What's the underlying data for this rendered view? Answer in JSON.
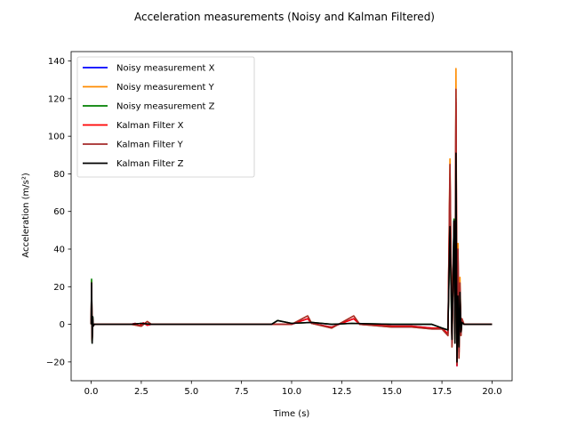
{
  "chart_data": {
    "type": "line",
    "title": "Acceleration measurements (Noisy and Kalman Filtered)",
    "xlabel": "Time (s)",
    "ylabel": "Acceleration (m/s²)",
    "xlim": [
      -1.0,
      21.0
    ],
    "ylim": [
      -30,
      145
    ],
    "xticks": [
      0.0,
      2.5,
      5.0,
      7.5,
      10.0,
      12.5,
      15.0,
      17.5,
      20.0
    ],
    "xtick_labels": [
      "0.0",
      "2.5",
      "5.0",
      "7.5",
      "10.0",
      "12.5",
      "15.0",
      "17.5",
      "20.0"
    ],
    "yticks": [
      -20,
      0,
      20,
      40,
      60,
      80,
      100,
      120,
      140
    ],
    "ytick_labels": [
      "−20",
      "0",
      "20",
      "40",
      "60",
      "80",
      "100",
      "120",
      "140"
    ],
    "grid": false,
    "legend_position": "top-left",
    "series": [
      {
        "name": "Noisy measurement X",
        "color": "#0000ff",
        "x": [
          0,
          0.02,
          0.05,
          0.08,
          0.1,
          0.15,
          2.0,
          2.2,
          2.4,
          2.6,
          2.8,
          3.0,
          6.0,
          9.0,
          10.0,
          10.8,
          11.0,
          12.0,
          13.1,
          13.4,
          15.0,
          16.0,
          17.0,
          17.5,
          17.8,
          17.9,
          18.0,
          18.1,
          18.15,
          18.2,
          18.25,
          18.3,
          18.35,
          18.4,
          18.45,
          18.5,
          18.6,
          20.0
        ],
        "y": [
          0,
          22,
          -8,
          2,
          -1,
          0,
          0,
          0.5,
          -0.8,
          0.8,
          -0.5,
          0,
          0,
          0,
          0,
          3,
          0.5,
          -1.5,
          3,
          0,
          -1,
          -1,
          -2,
          -2,
          -5,
          80,
          -10,
          55,
          -5,
          120,
          -22,
          40,
          -15,
          20,
          -5,
          2,
          0,
          0
        ]
      },
      {
        "name": "Noisy measurement Y",
        "color": "#ff8c00",
        "x": [
          0,
          0.02,
          0.05,
          0.08,
          0.1,
          0.15,
          2.0,
          2.5,
          2.8,
          3.0,
          6.0,
          9.0,
          10.0,
          10.8,
          11.0,
          12.0,
          13.1,
          13.4,
          15.0,
          16.0,
          17.0,
          17.5,
          17.8,
          17.9,
          18.0,
          18.1,
          18.15,
          18.2,
          18.25,
          18.3,
          18.35,
          18.4,
          18.45,
          18.5,
          18.6,
          20.0
        ],
        "y": [
          0,
          23,
          -9,
          3,
          -1,
          0,
          0,
          -1,
          1.5,
          0,
          0,
          0,
          0,
          4.5,
          0.5,
          -2,
          4.5,
          0,
          -1.5,
          -1.5,
          -2.5,
          -2.5,
          -6,
          88,
          -12,
          50,
          -8,
          136,
          -21,
          43,
          -18,
          25,
          -6,
          3,
          0,
          0
        ]
      },
      {
        "name": "Noisy measurement Z",
        "color": "#008000",
        "x": [
          0,
          0.02,
          0.05,
          0.08,
          0.1,
          0.15,
          2.0,
          2.5,
          3.0,
          6.0,
          9.0,
          9.3,
          10.0,
          11.0,
          12.0,
          13.0,
          15.0,
          17.0,
          17.5,
          17.8,
          17.9,
          18.0,
          18.1,
          18.15,
          18.2,
          18.25,
          18.3,
          18.35,
          18.4,
          18.45,
          18.5,
          18.6,
          20.0
        ],
        "y": [
          0,
          24,
          -10,
          4,
          -1,
          0,
          0,
          0.5,
          0,
          0,
          0,
          2,
          0.5,
          1,
          0,
          0.5,
          0,
          0,
          -2,
          -3,
          52,
          -8,
          56,
          -10,
          90,
          -20,
          15,
          -12,
          18,
          -4,
          1,
          0,
          0
        ]
      },
      {
        "name": "Kalman Filter X",
        "color": "#ff0000",
        "x": [
          0,
          0.02,
          0.05,
          0.08,
          0.1,
          0.15,
          2.0,
          2.2,
          2.4,
          2.6,
          2.8,
          3.0,
          6.0,
          9.0,
          10.0,
          10.8,
          11.0,
          12.0,
          13.1,
          13.4,
          15.0,
          16.0,
          17.0,
          17.5,
          17.8,
          17.9,
          18.0,
          18.1,
          18.15,
          18.2,
          18.25,
          18.3,
          18.35,
          18.4,
          18.45,
          18.5,
          18.6,
          20.0
        ],
        "y": [
          0,
          21,
          -8,
          2,
          -1,
          0,
          0,
          0.5,
          -0.8,
          0.8,
          -0.5,
          0,
          0,
          0,
          0,
          3,
          0.5,
          -1.5,
          3,
          0,
          -1,
          -1,
          -2,
          -2,
          -5,
          78,
          -10,
          54,
          -5,
          118,
          -22,
          38,
          -15,
          19,
          -5,
          2,
          0,
          0
        ]
      },
      {
        "name": "Kalman Filter Y",
        "color": "#a52a2a",
        "x": [
          0,
          0.02,
          0.05,
          0.08,
          0.1,
          0.15,
          2.0,
          2.5,
          2.8,
          3.0,
          6.0,
          9.0,
          10.0,
          10.8,
          11.0,
          12.0,
          13.1,
          13.4,
          15.0,
          16.0,
          17.0,
          17.5,
          17.8,
          17.9,
          18.0,
          18.1,
          18.15,
          18.2,
          18.25,
          18.3,
          18.35,
          18.4,
          18.45,
          18.5,
          18.6,
          20.0
        ],
        "y": [
          0,
          22,
          -9,
          3,
          -1,
          0,
          0,
          -1,
          1.5,
          0,
          0,
          0,
          0,
          4.5,
          0.5,
          -2,
          4.5,
          0,
          -1.5,
          -1.5,
          -2.5,
          -2.5,
          -6,
          85,
          -12,
          48,
          -8,
          125,
          -21,
          40,
          -18,
          22,
          -6,
          3,
          0,
          0
        ]
      },
      {
        "name": "Kalman Filter Z",
        "color": "#000000",
        "x": [
          0,
          0.02,
          0.05,
          0.08,
          0.1,
          0.15,
          2.0,
          2.5,
          3.0,
          6.0,
          9.0,
          9.3,
          10.0,
          11.0,
          12.0,
          13.0,
          15.0,
          17.0,
          17.5,
          17.8,
          17.9,
          18.0,
          18.1,
          18.15,
          18.2,
          18.25,
          18.3,
          18.35,
          18.4,
          18.45,
          18.5,
          18.6,
          20.0
        ],
        "y": [
          0,
          22,
          -10,
          4,
          -1,
          0,
          0,
          0.5,
          0,
          0,
          0,
          2,
          0.5,
          1,
          0,
          0.5,
          0,
          0,
          -2,
          -3,
          52,
          -8,
          55,
          -10,
          91,
          -20,
          15,
          -12,
          17,
          -4,
          1,
          0,
          0
        ]
      }
    ]
  }
}
